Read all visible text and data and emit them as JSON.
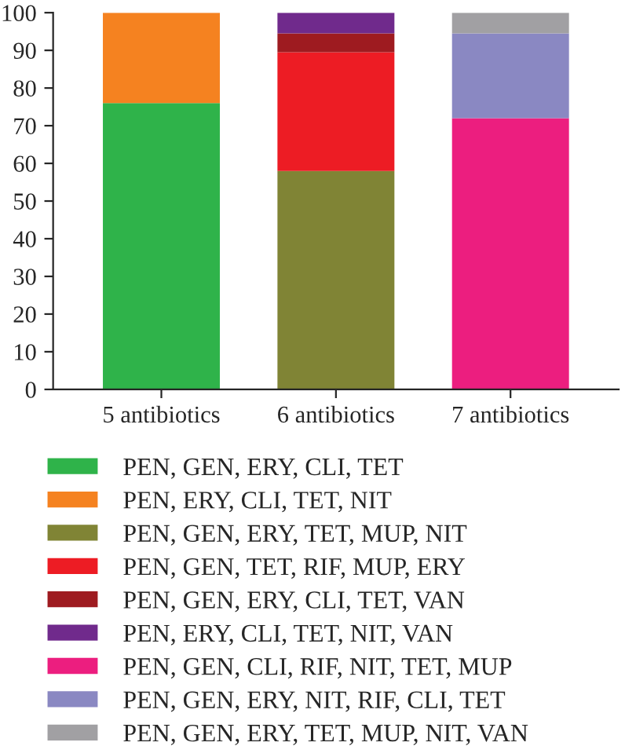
{
  "chart_data": {
    "type": "bar",
    "stacked": true,
    "categories": [
      "5 antibiotics",
      "6 antibiotics",
      "7 antibiotics"
    ],
    "series": [
      {
        "name": "PEN, GEN, ERY, CLI, TET",
        "color": "#2fb34a",
        "values": [
          76,
          null,
          null
        ]
      },
      {
        "name": "PEN, ERY, CLI, TET, NIT",
        "color": "#f58220",
        "values": [
          24,
          null,
          null
        ]
      },
      {
        "name": "PEN, GEN, ERY, TET, MUP, NIT",
        "color": "#808435",
        "values": [
          null,
          58,
          null
        ]
      },
      {
        "name": "PEN, GEN, TET, RIF, MUP, ERY",
        "color": "#ed1c24",
        "values": [
          null,
          31.5,
          null
        ]
      },
      {
        "name": "PEN, GEN, ERY, CLI, TET, VAN",
        "color": "#9e1b20",
        "values": [
          null,
          5,
          null
        ]
      },
      {
        "name": "PEN, ERY, CLI, TET, NIT, VAN",
        "color": "#702a8c",
        "values": [
          null,
          5.5,
          null
        ]
      },
      {
        "name": "PEN, GEN, CLI, RIF, NIT, TET, MUP",
        "color": "#ec1e7f",
        "values": [
          null,
          null,
          72
        ]
      },
      {
        "name": "PEN, GEN, ERY, NIT, RIF, CLI, TET",
        "color": "#8a88c2",
        "values": [
          null,
          null,
          22.5
        ]
      },
      {
        "name": "PEN, GEN, ERY, TET, MUP, NIT, VAN",
        "color": "#a1a0a3",
        "values": [
          null,
          null,
          5.5
        ]
      }
    ],
    "ylim": [
      0,
      100
    ],
    "yticks": [
      0,
      10,
      20,
      30,
      40,
      50,
      60,
      70,
      80,
      90,
      100
    ],
    "grid": false,
    "legend": "bottom"
  }
}
